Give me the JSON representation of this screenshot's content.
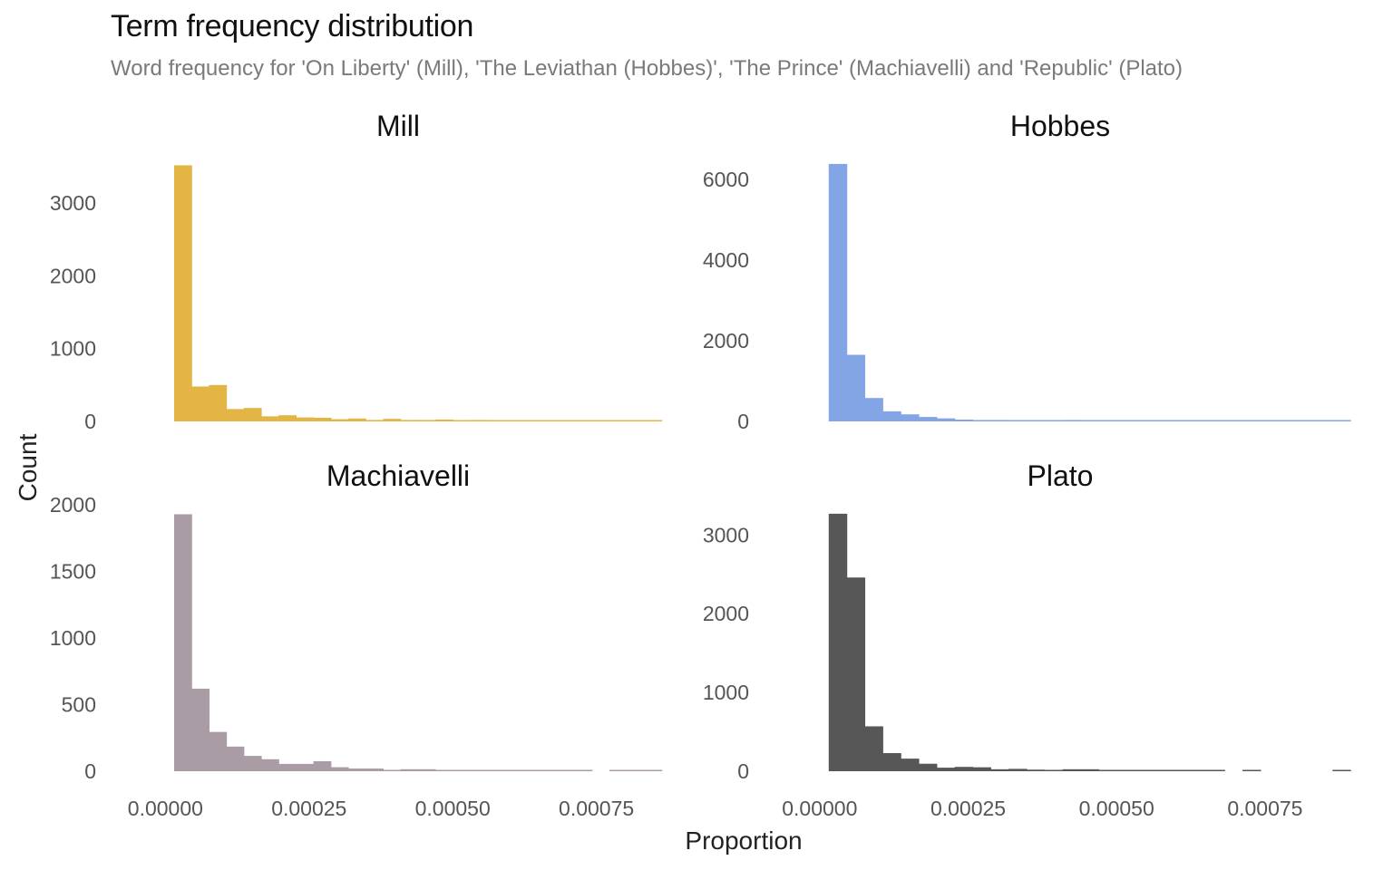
{
  "header": {
    "title": "Term frequency distribution",
    "subtitle": "Word frequency for 'On Liberty' (Mill), 'The Leviathan (Hobbes)', 'The Prince' (Machiavelli) and 'Republic' (Plato)"
  },
  "chart_data": {
    "type": "bar",
    "xlabel": "Proportion",
    "ylabel": "Count",
    "grid": false,
    "legend": "none",
    "x_ticks": [
      "0.00000",
      "0.00025",
      "0.00050",
      "0.00075"
    ],
    "x_tick_values": [
      0,
      0.00025,
      0.0005,
      0.00075
    ],
    "xlim": [
      -7e-05,
      0.00088
    ],
    "bin_width": 3.03e-05,
    "bin_start": 1.52e-05,
    "facets": [
      {
        "name": "Mill",
        "color": "#E3B545",
        "ylim": [
          0,
          3550
        ],
        "y_ticks": [
          "0",
          "1000",
          "2000",
          "3000"
        ],
        "y_tick_values": [
          0,
          1000,
          2000,
          3000
        ],
        "counts": [
          3520,
          480,
          500,
          170,
          185,
          70,
          85,
          55,
          50,
          30,
          40,
          20,
          35,
          20,
          20,
          25,
          15,
          20,
          15,
          12,
          10,
          10,
          10,
          10,
          8,
          8,
          8,
          8
        ]
      },
      {
        "name": "Hobbes",
        "color": "#83A5E6",
        "ylim": [
          0,
          6400
        ],
        "y_ticks": [
          "0",
          "2000",
          "4000",
          "6000"
        ],
        "y_tick_values": [
          0,
          2000,
          4000,
          6000
        ],
        "counts": [
          6380,
          1650,
          580,
          250,
          175,
          110,
          75,
          45,
          35,
          35,
          20,
          15,
          20,
          35,
          15,
          10,
          10,
          10,
          10,
          10,
          8,
          8,
          8,
          8,
          8,
          8,
          8,
          8,
          8
        ]
      },
      {
        "name": "Machiavelli",
        "color": "#A99CA4",
        "ylim": [
          0,
          1940
        ],
        "y_ticks": [
          "0",
          "500",
          "1000",
          "1500",
          "2000"
        ],
        "y_tick_values": [
          0,
          500,
          1000,
          1500,
          2000
        ],
        "counts": [
          1930,
          620,
          295,
          185,
          115,
          90,
          55,
          55,
          75,
          30,
          20,
          20,
          10,
          15,
          15,
          8,
          8,
          8,
          8,
          4,
          4,
          4,
          4,
          4,
          0,
          4,
          4,
          4
        ]
      },
      {
        "name": "Plato",
        "color": "#575757",
        "ylim": [
          0,
          3280
        ],
        "y_ticks": [
          "0",
          "1000",
          "2000",
          "3000"
        ],
        "y_tick_values": [
          0,
          1000,
          2000,
          3000
        ],
        "counts": [
          3270,
          2460,
          570,
          230,
          160,
          95,
          45,
          55,
          50,
          25,
          30,
          20,
          15,
          25,
          25,
          10,
          10,
          8,
          8,
          8,
          8,
          8,
          0,
          8,
          0,
          0,
          0,
          0,
          8
        ]
      }
    ]
  }
}
